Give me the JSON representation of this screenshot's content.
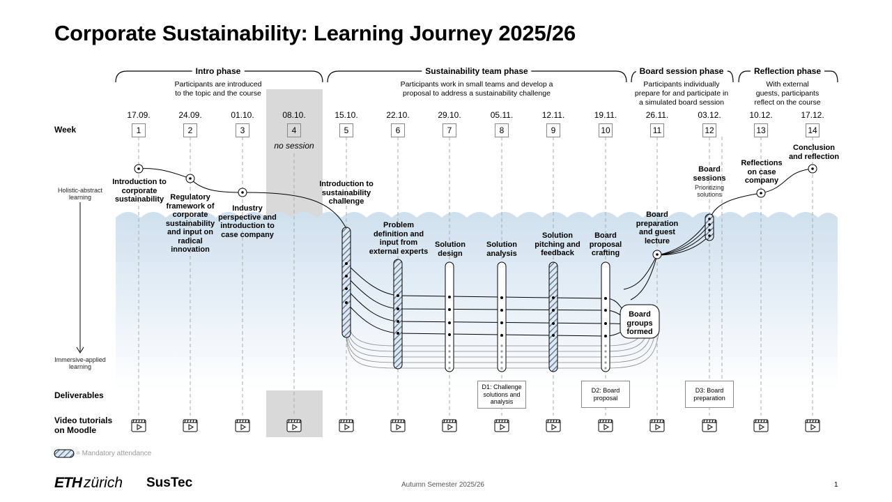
{
  "title": "Corporate Sustainability: Learning Journey 2025/26",
  "phases": [
    {
      "label": "Intro phase",
      "desc": "Participants are introduced\nto the topic and the course"
    },
    {
      "label": "Sustainability team phase",
      "desc": "Participants work in small teams and develop a\nproposal to address a sustainability challenge"
    },
    {
      "label": "Board session phase",
      "desc": "Participants individually\nprepare for and participate in\na simulated board session"
    },
    {
      "label": "Reflection phase",
      "desc": "With external\nguests, participants\nreflect on the course"
    }
  ],
  "row_labels": {
    "week": "Week",
    "holistic": "Holistic-abstract\nlearning",
    "immersive": "Immersive-applied\nlearning",
    "deliverables": "Deliverables",
    "video": "Video tutorials\non Moodle"
  },
  "dates": [
    "17.09.",
    "24.09.",
    "01.10.",
    "08.10.",
    "15.10.",
    "22.10.",
    "29.10.",
    "05.11.",
    "12.11.",
    "19.11.",
    "26.11.",
    "03.12.",
    "10.12.",
    "17.12."
  ],
  "weeks": [
    "1",
    "2",
    "3",
    "4",
    "5",
    "6",
    "7",
    "8",
    "9",
    "10",
    "11",
    "12",
    "13",
    "14"
  ],
  "no_session": "no session",
  "activities": [
    "Introduction to\ncorporate\nsustainability",
    "Regulatory\nframework of\ncorporate\nsustainability\nand input on\nradical\ninnovation",
    "Industry\nperspective and\nintroduction to\ncase company",
    "Introduction to\nsustainability\nchallenge",
    "Problem\ndefinition and\ninput from\nexternal experts",
    "Solution\ndesign",
    "Solution\nanalysis",
    "Solution\npitching and\nfeedback",
    "Board\nproposal\ncrafting",
    "Board\npreparation\nand guest\nlecture",
    "Board\nsessions",
    "Reflections\non case\ncompany",
    "Conclusion\nand reflection"
  ],
  "prioritizing": "Prioritizing\nsolutions",
  "board_groups": "Board\ngroups\nformed",
  "deliverables": [
    "D1: Challenge\nsolutions and\nanalysis",
    "D2: Board\nproposal",
    "D3: Board\npreparation"
  ],
  "legend": "= Mandatory attendance",
  "footer": {
    "eth_bold": "ETH",
    "eth_rest": "zürich",
    "sustec": "SusTec",
    "semester": "Autumn Semester 2025/26",
    "page": "1"
  },
  "colors": {
    "water_top": "#cfe0ee",
    "water_bottom": "#ffffff",
    "hatch": "#6f8aa6",
    "no_session_bg": "#d9d9d9"
  }
}
